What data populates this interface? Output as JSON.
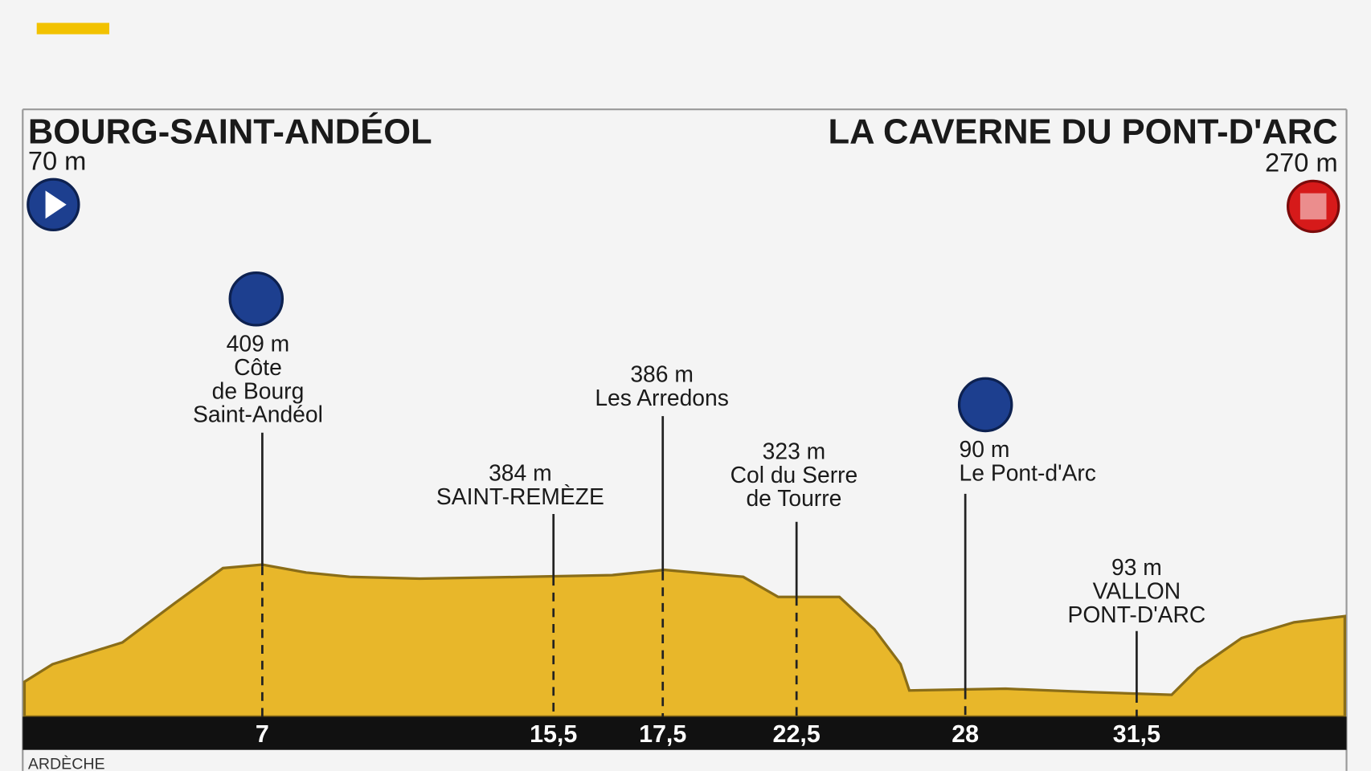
{
  "header": {
    "start": {
      "name": "BOURG-SAINT-ANDÉOL",
      "altitude": "70 m"
    },
    "finish": {
      "name": "LA CAVERNE DU PONT-D'ARC",
      "altitude": "270 m"
    }
  },
  "waypoints": [
    {
      "altitude": "409 m",
      "name": [
        "Côte",
        "de Bourg",
        "Saint-Andéol"
      ],
      "km": "7"
    },
    {
      "altitude": "384 m",
      "name": [
        "SAINT-REMÈZE"
      ],
      "km": "15,5"
    },
    {
      "altitude": "386 m",
      "name": [
        "Les Arredons"
      ],
      "km": "17,5"
    },
    {
      "altitude": "323 m",
      "name": [
        "Col du Serre",
        "de Tourre"
      ],
      "km": "22,5"
    },
    {
      "altitude": "90 m",
      "name": [
        "Le Pont-d'Arc"
      ],
      "km": "28"
    },
    {
      "altitude": "93 m",
      "name": [
        "VALLON",
        "PONT-D'ARC"
      ],
      "km": "31,5"
    }
  ],
  "footer": {
    "region": "ARDÈCHE"
  }
}
